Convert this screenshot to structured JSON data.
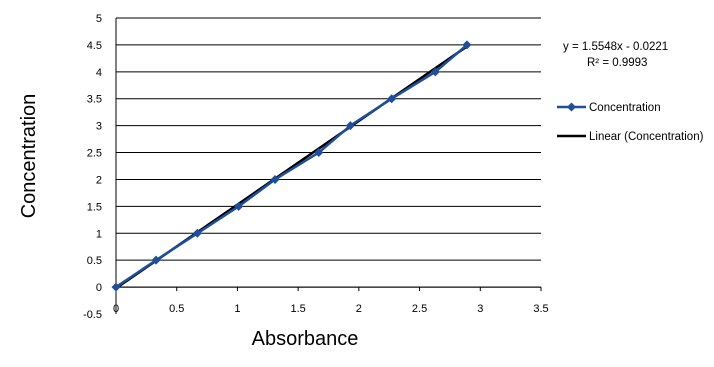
{
  "chart_data": {
    "type": "scatter",
    "title": "",
    "xlabel": "Absorbance",
    "ylabel": "Concentration",
    "xlim": [
      0,
      3.5
    ],
    "ylim": [
      -0.5,
      5
    ],
    "x_ticks": [
      "0",
      "0.5",
      "1",
      "1.5",
      "2",
      "2.5",
      "3",
      "3.5"
    ],
    "y_ticks": [
      "-0.5",
      "0",
      "0.5",
      "1",
      "1.5",
      "2",
      "2.5",
      "3",
      "3.5",
      "4",
      "4.5",
      "5"
    ],
    "grid": "horizontal",
    "legend_position": "right",
    "series": [
      {
        "name": "Concentration",
        "color": "#1f4e9b",
        "marker": "diamond",
        "x": [
          0,
          0.33,
          0.67,
          1.01,
          1.31,
          1.67,
          1.93,
          2.27,
          2.63,
          2.89
        ],
        "y": [
          0,
          0.5,
          1.0,
          1.5,
          2.0,
          2.5,
          3.0,
          3.5,
          4.0,
          4.5
        ]
      }
    ],
    "trendline": {
      "name": "Linear (Concentration)",
      "color": "#000000",
      "slope": 1.5548,
      "intercept": -0.0221,
      "equation": "y = 1.5548x - 0.0221",
      "r_squared": "R² = 0.9993"
    }
  }
}
